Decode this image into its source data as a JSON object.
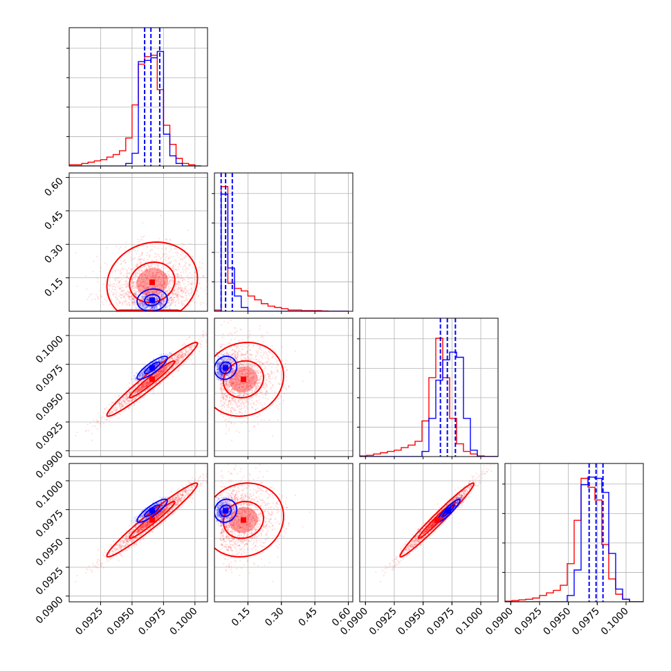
{
  "colors": {
    "series_a": "#0000ff",
    "series_b": "#ff0000",
    "grid": "#b0b0b0",
    "axes": "#000000"
  },
  "chart_data": {
    "type": "corner",
    "series": [
      {
        "name": "",
        "color": "#0000ff"
      },
      {
        "name": "",
        "color": "#ff0000"
      }
    ],
    "variables": [
      {
        "range": [
          0.09,
          0.101
        ],
        "ticks": [
          0.0925,
          0.095,
          0.0975,
          0.1
        ],
        "tick_labels": [
          "0.0925",
          "0.0950",
          "0.0975",
          "0.1000"
        ]
      },
      {
        "range": [
          0.0,
          0.62
        ],
        "ticks": [
          0.15,
          0.3,
          0.45,
          0.6
        ],
        "tick_labels": [
          "0.15",
          "0.30",
          "0.45",
          "0.60"
        ]
      },
      {
        "range": [
          0.0895,
          0.1015
        ],
        "ticks": [
          0.09,
          0.0925,
          0.095,
          0.0975,
          0.1
        ],
        "tick_labels": [
          "0.0900",
          "0.0925",
          "0.0950",
          "0.0975",
          "0.1000"
        ]
      },
      {
        "range": [
          0.0895,
          0.1015
        ],
        "ticks": [
          0.09,
          0.0925,
          0.095,
          0.0975,
          0.1
        ],
        "tick_labels": [
          "0.0900",
          "0.0925",
          "0.0950",
          "0.0975",
          "0.1000"
        ]
      }
    ],
    "quantiles": [
      [
        0.096,
        0.0965,
        0.0972
      ],
      [
        0.03,
        0.05,
        0.08
      ],
      [
        0.0965,
        0.0971,
        0.0978
      ],
      [
        0.0968,
        0.0974,
        0.098
      ]
    ],
    "histograms": [
      {
        "bins": [
          0.09,
          0.0905,
          0.091,
          0.0915,
          0.092,
          0.0925,
          0.093,
          0.0935,
          0.094,
          0.0945,
          0.095,
          0.0955,
          0.096,
          0.0965,
          0.097,
          0.0975,
          0.098,
          0.0985,
          0.099,
          0.0995,
          0.1,
          0.1005
        ],
        "series_a": [
          0,
          0,
          0,
          0,
          0,
          0,
          0,
          0,
          0,
          0.02,
          0.1,
          0.82,
          0.83,
          0.85,
          0.9,
          0.25,
          0.08,
          0.02,
          0,
          0,
          0
        ],
        "series_b": [
          0.01,
          0.01,
          0.02,
          0.03,
          0.04,
          0.05,
          0.07,
          0.09,
          0.12,
          0.22,
          0.48,
          0.8,
          0.86,
          0.87,
          0.6,
          0.32,
          0.17,
          0.06,
          0.02,
          0.01,
          0
        ]
      },
      {
        "bins": [
          0.0,
          0.03,
          0.06,
          0.09,
          0.12,
          0.15,
          0.18,
          0.21,
          0.24,
          0.27,
          0.3,
          0.33,
          0.36,
          0.39,
          0.42,
          0.45,
          0.48,
          0.51,
          0.54,
          0.57,
          0.6
        ],
        "series_a": [
          0,
          0.92,
          0.34,
          0.12,
          0.03,
          0,
          0,
          0,
          0,
          0,
          0,
          0,
          0,
          0,
          0,
          0,
          0,
          0,
          0,
          0
        ],
        "series_b": [
          0.01,
          0.98,
          0.22,
          0.18,
          0.16,
          0.12,
          0.09,
          0.06,
          0.04,
          0.03,
          0.02,
          0.01,
          0.01,
          0.005,
          0.005,
          0.005,
          0.002,
          0,
          0,
          0
        ]
      },
      {
        "bins": [
          0.0895,
          0.0901,
          0.0907,
          0.0913,
          0.0919,
          0.0925,
          0.0931,
          0.0937,
          0.0943,
          0.0949,
          0.0955,
          0.0961,
          0.0967,
          0.0973,
          0.0979,
          0.0985,
          0.0991,
          0.0997,
          0.1003,
          0.1009,
          0.1015
        ],
        "series_a": [
          0,
          0,
          0,
          0,
          0,
          0,
          0,
          0,
          0,
          0.04,
          0.3,
          0.6,
          0.76,
          0.82,
          0.78,
          0.3,
          0.05,
          0,
          0,
          0
        ],
        "series_b": [
          0.005,
          0.01,
          0.02,
          0.03,
          0.04,
          0.05,
          0.07,
          0.09,
          0.12,
          0.28,
          0.62,
          0.93,
          0.62,
          0.3,
          0.1,
          0.04,
          0.02,
          0.005,
          0,
          0
        ]
      },
      {
        "bins": [
          0.0895,
          0.0901,
          0.0907,
          0.0913,
          0.0919,
          0.0925,
          0.0931,
          0.0937,
          0.0943,
          0.0949,
          0.0955,
          0.0961,
          0.0967,
          0.0973,
          0.0979,
          0.0985,
          0.0991,
          0.0997,
          0.1003,
          0.1009,
          0.1015
        ],
        "series_a": [
          0,
          0,
          0,
          0,
          0,
          0,
          0,
          0,
          0,
          0.05,
          0.25,
          0.92,
          0.98,
          0.97,
          0.86,
          0.38,
          0.1,
          0.02,
          0,
          0
        ],
        "series_b": [
          0.005,
          0.01,
          0.015,
          0.02,
          0.03,
          0.05,
          0.07,
          0.09,
          0.13,
          0.3,
          0.64,
          0.97,
          0.9,
          0.8,
          0.45,
          0.18,
          0.06,
          0.02,
          0,
          0
        ]
      }
    ],
    "scatter_params": {
      "series_a": {
        "mean": [
          0.0966,
          0.05,
          0.0972,
          0.0974
        ],
        "sd": [
          0.0006,
          0.025,
          0.0005,
          0.0005
        ],
        "corr": [
          [
            1,
            0.1,
            0.85,
            0.85
          ],
          [
            0.1,
            1,
            0.1,
            0.1
          ],
          [
            0.85,
            0.1,
            1,
            0.92
          ],
          [
            0.85,
            0.1,
            0.92,
            1
          ]
        ],
        "count": 700
      },
      "series_b": {
        "mean": [
          0.0966,
          0.13,
          0.0962,
          0.0966
        ],
        "sd": [
          0.0018,
          0.09,
          0.0016,
          0.0016
        ],
        "corr": [
          [
            1,
            0.1,
            0.97,
            0.97
          ],
          [
            0.1,
            1,
            0.1,
            0.1
          ],
          [
            0.97,
            0.1,
            1,
            0.98
          ],
          [
            0.97,
            0.1,
            0.98,
            1
          ]
        ],
        "count": 1600
      }
    },
    "contour_levels": [
      1,
      2
    ],
    "grid": true,
    "legend": "none"
  }
}
